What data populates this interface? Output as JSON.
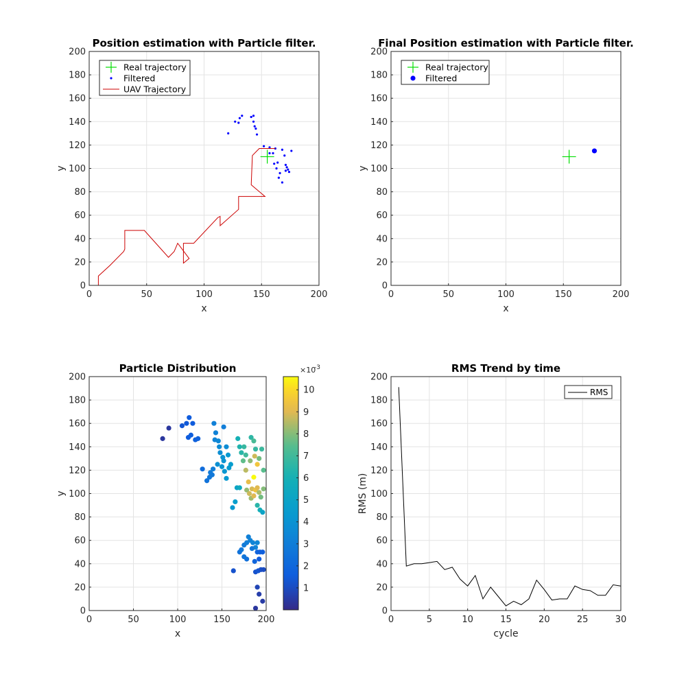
{
  "chart_data": [
    {
      "id": "p1",
      "type": "scatter",
      "title": "Position estimation with Particle filter.",
      "xlabel": "x",
      "ylabel": "y",
      "xlim": [
        0,
        200
      ],
      "ylim": [
        0,
        200
      ],
      "xticks": [
        "0",
        "50",
        "100",
        "150",
        "200"
      ],
      "yticks": [
        "0",
        "20",
        "40",
        "60",
        "80",
        "100",
        "120",
        "140",
        "160",
        "180",
        "200"
      ],
      "grid": true,
      "legend_position": "top-left",
      "series": [
        {
          "name": "Real trajectory",
          "kind": "marker-plus",
          "color": "#00dd00",
          "points": [
            [
              155,
              110
            ]
          ]
        },
        {
          "name": "Filtered",
          "kind": "dots",
          "color": "#0000ff",
          "points": [
            [
              121,
              130
            ],
            [
              127,
              140
            ],
            [
              130,
              139
            ],
            [
              131,
              143
            ],
            [
              133,
              145
            ],
            [
              141,
              144
            ],
            [
              143,
              140
            ],
            [
              143,
              145
            ],
            [
              144,
              136
            ],
            [
              145,
              134
            ],
            [
              146,
              129
            ],
            [
              152,
              119
            ],
            [
              157,
              118
            ],
            [
              157,
              113
            ],
            [
              160,
              113
            ],
            [
              162,
              117
            ],
            [
              161,
              104
            ],
            [
              163,
              100
            ],
            [
              164,
              105
            ],
            [
              165,
              92
            ],
            [
              166,
              96
            ],
            [
              168,
              116
            ],
            [
              168,
              88
            ],
            [
              170,
              111
            ],
            [
              171,
              103
            ],
            [
              171,
              98
            ],
            [
              172,
              101
            ],
            [
              173,
              99
            ],
            [
              174,
              97
            ],
            [
              176,
              115
            ]
          ]
        },
        {
          "name": "UAV Trajectory",
          "kind": "line",
          "color": "#cc0000",
          "points": [
            [
              0,
              0
            ],
            [
              8,
              0
            ],
            [
              8,
              8
            ],
            [
              18,
              17
            ],
            [
              30,
              29
            ],
            [
              31,
              31
            ],
            [
              31,
              47
            ],
            [
              48,
              47
            ],
            [
              69,
              24
            ],
            [
              74,
              29
            ],
            [
              77,
              36
            ],
            [
              87,
              23
            ],
            [
              82,
              19
            ],
            [
              82,
              36
            ],
            [
              91,
              36
            ],
            [
              112,
              58
            ],
            [
              114,
              59
            ],
            [
              114,
              51
            ],
            [
              130,
              65
            ],
            [
              130,
              76
            ],
            [
              153,
              76
            ],
            [
              141,
              86
            ],
            [
              142,
              111
            ],
            [
              148,
              117
            ],
            [
              162,
              117
            ]
          ]
        }
      ]
    },
    {
      "id": "p2",
      "type": "scatter",
      "title": "Final Position estimation with Particle filter.",
      "xlabel": "x",
      "ylabel": "y",
      "xlim": [
        0,
        200
      ],
      "ylim": [
        0,
        200
      ],
      "xticks": [
        "0",
        "50",
        "100",
        "150",
        "200"
      ],
      "yticks": [
        "0",
        "20",
        "40",
        "60",
        "80",
        "100",
        "120",
        "140",
        "160",
        "180",
        "200"
      ],
      "grid": true,
      "legend_position": "top-left",
      "series": [
        {
          "name": "Real trajectory",
          "kind": "marker-plus",
          "color": "#00dd00",
          "points": [
            [
              155,
              110
            ]
          ]
        },
        {
          "name": "Filtered",
          "kind": "filled-dot",
          "color": "#0000ff",
          "points": [
            [
              177,
              115
            ]
          ]
        }
      ]
    },
    {
      "id": "p3",
      "type": "scatter",
      "title": "Particle Distribution",
      "xlabel": "x",
      "ylabel": "y",
      "xlim": [
        0,
        200
      ],
      "ylim": [
        0,
        200
      ],
      "xticks": [
        "0",
        "50",
        "100",
        "150",
        "200"
      ],
      "yticks": [
        "0",
        "20",
        "40",
        "60",
        "80",
        "100",
        "120",
        "140",
        "160",
        "180",
        "200"
      ],
      "grid": true,
      "colorbar": {
        "colormap": "parula",
        "range": [
          0,
          10.6
        ],
        "ticks": [
          "1",
          "2",
          "3",
          "4",
          "5",
          "6",
          "7",
          "8",
          "9",
          "10"
        ],
        "exponent_base": "×10",
        "exponent_power": "-3"
      },
      "points": [
        [
          83,
          147,
          0.4
        ],
        [
          90,
          156,
          0.4
        ],
        [
          105,
          158,
          1.3
        ],
        [
          110,
          160,
          1.4
        ],
        [
          113,
          165,
          1.5
        ],
        [
          117,
          160,
          1.5
        ],
        [
          112,
          148,
          1.5
        ],
        [
          115,
          150,
          1.6
        ],
        [
          120,
          146,
          1.7
        ],
        [
          123,
          147,
          1.8
        ],
        [
          128,
          121,
          2.2
        ],
        [
          133,
          111,
          2.5
        ],
        [
          136,
          114,
          2.7
        ],
        [
          137,
          118,
          2.9
        ],
        [
          139,
          116,
          2.8
        ],
        [
          140,
          121,
          3.0
        ],
        [
          141,
          160,
          3.1
        ],
        [
          143,
          152,
          3.2
        ],
        [
          142,
          146,
          3.3
        ],
        [
          146,
          145,
          3.5
        ],
        [
          147,
          140,
          3.7
        ],
        [
          148,
          135,
          3.8
        ],
        [
          151,
          131,
          4.0
        ],
        [
          152,
          128,
          4.0
        ],
        [
          150,
          123,
          4.1
        ],
        [
          153,
          119,
          4.2
        ],
        [
          155,
          113,
          4.3
        ],
        [
          145,
          125,
          3.9
        ],
        [
          152,
          157,
          3.0
        ],
        [
          155,
          140,
          3.7
        ],
        [
          157,
          133,
          4.3
        ],
        [
          160,
          125,
          4.5
        ],
        [
          158,
          122,
          4.4
        ],
        [
          162,
          88,
          4.3
        ],
        [
          165,
          93,
          4.6
        ],
        [
          167,
          105,
          5.0
        ],
        [
          170,
          105,
          5.5
        ],
        [
          168,
          147,
          6.0
        ],
        [
          170,
          140,
          6.3
        ],
        [
          172,
          135,
          6.5
        ],
        [
          175,
          140,
          6.8
        ],
        [
          177,
          133,
          7.0
        ],
        [
          174,
          128,
          7.6
        ],
        [
          177,
          120,
          8.6
        ],
        [
          180,
          110,
          9.2
        ],
        [
          178,
          103,
          8.2
        ],
        [
          181,
          100,
          8.8
        ],
        [
          183,
          96,
          8.3
        ],
        [
          184,
          104,
          8.9
        ],
        [
          186,
          98,
          9.0
        ],
        [
          186,
          114,
          10.6
        ],
        [
          188,
          103,
          9.4
        ],
        [
          190,
          105,
          9.0
        ],
        [
          192,
          101,
          8.4
        ],
        [
          194,
          97,
          7.8
        ],
        [
          197,
          104,
          8.0
        ],
        [
          190,
          90,
          6.5
        ],
        [
          193,
          86,
          5.8
        ],
        [
          196,
          84,
          5.0
        ],
        [
          183,
          148,
          6.6
        ],
        [
          186,
          145,
          7.2
        ],
        [
          188,
          138,
          6.8
        ],
        [
          190,
          125,
          9.5
        ],
        [
          187,
          132,
          8.8
        ],
        [
          182,
          128,
          8.1
        ],
        [
          192,
          130,
          7.8
        ],
        [
          195,
          138,
          6.9
        ],
        [
          197,
          120,
          7.5
        ],
        [
          172,
          52,
          2.8
        ],
        [
          175,
          56,
          2.9
        ],
        [
          178,
          58,
          3.0
        ],
        [
          180,
          63,
          3.1
        ],
        [
          182,
          60,
          3.2
        ],
        [
          185,
          58,
          3.3
        ],
        [
          188,
          54,
          3.3
        ],
        [
          190,
          58,
          3.4
        ],
        [
          184,
          53,
          2.7
        ],
        [
          175,
          46,
          2.6
        ],
        [
          170,
          50,
          2.5
        ],
        [
          178,
          44,
          2.4
        ],
        [
          163,
          34,
          1.2
        ],
        [
          187,
          42,
          1.9
        ],
        [
          190,
          50,
          1.8
        ],
        [
          193,
          50,
          1.7
        ],
        [
          196,
          50,
          1.6
        ],
        [
          192,
          44,
          1.5
        ],
        [
          188,
          33,
          1.2
        ],
        [
          191,
          34,
          1.3
        ],
        [
          194,
          35,
          1.1
        ],
        [
          197,
          35,
          1.0
        ],
        [
          190,
          20,
          0.8
        ],
        [
          192,
          14,
          0.6
        ],
        [
          196,
          8,
          0.5
        ],
        [
          188,
          2,
          0.4
        ]
      ]
    },
    {
      "id": "p4",
      "type": "line",
      "title": "RMS Trend by time",
      "xlabel": "cycle",
      "ylabel": "RMS (m)",
      "xlim": [
        0,
        30
      ],
      "ylim": [
        0,
        200
      ],
      "xticks": [
        "0",
        "5",
        "10",
        "15",
        "20",
        "25",
        "30"
      ],
      "yticks": [
        "0",
        "20",
        "40",
        "60",
        "80",
        "100",
        "120",
        "140",
        "160",
        "180",
        "200"
      ],
      "grid": true,
      "legend_position": "top-right",
      "series": [
        {
          "name": "RMS",
          "kind": "line",
          "color": "#000000",
          "points": [
            [
              1,
              191
            ],
            [
              2,
              38
            ],
            [
              3,
              40
            ],
            [
              4,
              40
            ],
            [
              5,
              41
            ],
            [
              6,
              42
            ],
            [
              7,
              35
            ],
            [
              8,
              37
            ],
            [
              9,
              27
            ],
            [
              10,
              21
            ],
            [
              11,
              30
            ],
            [
              12,
              10
            ],
            [
              13,
              20
            ],
            [
              14,
              12
            ],
            [
              15,
              4
            ],
            [
              16,
              8
            ],
            [
              17,
              5
            ],
            [
              18,
              10
            ],
            [
              19,
              26
            ],
            [
              20,
              18
            ],
            [
              21,
              9
            ],
            [
              22,
              10
            ],
            [
              23,
              10
            ],
            [
              24,
              21
            ],
            [
              25,
              18
            ],
            [
              26,
              17
            ],
            [
              27,
              13
            ],
            [
              28,
              13
            ],
            [
              29,
              22
            ],
            [
              30,
              21
            ]
          ]
        }
      ]
    }
  ]
}
